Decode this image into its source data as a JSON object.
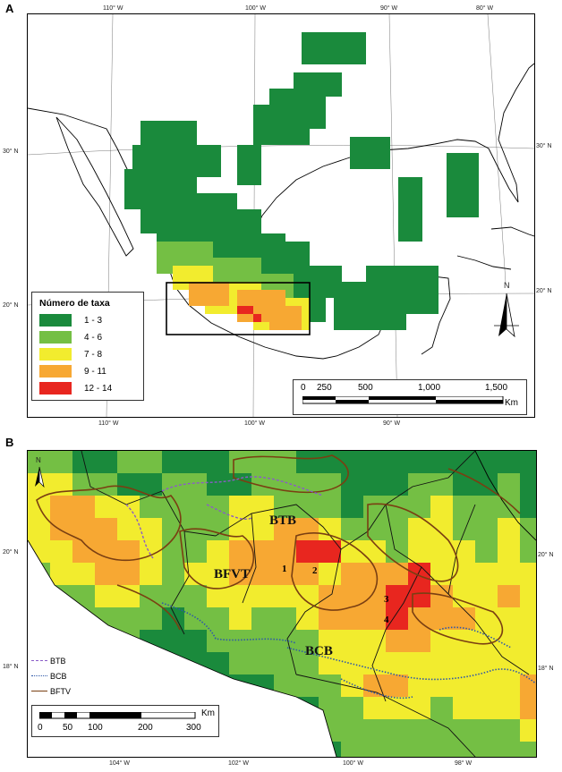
{
  "panel_a": {
    "letter": "A",
    "top_ticks": [
      "110° W",
      "100° W",
      "90° W",
      "80° W"
    ],
    "bottom_ticks": [
      "110° W",
      "100° W",
      "90° W"
    ],
    "left_ticks": [
      "30° N",
      "20° N"
    ],
    "right_ticks": [
      "30° N",
      "20° N"
    ],
    "legend": {
      "title": "Número de taxa",
      "items": [
        {
          "label": "1 - 3",
          "color": "#1a8a3c"
        },
        {
          "label": "4 - 6",
          "color": "#74bf44"
        },
        {
          "label": "7 - 8",
          "color": "#f2ec2e"
        },
        {
          "label": "9 - 11",
          "color": "#f7a833"
        },
        {
          "label": "12 - 14",
          "color": "#e8261f"
        }
      ]
    },
    "scale": {
      "labels": [
        "0",
        "250",
        "500",
        "1,000",
        "1,500"
      ],
      "unit": "Km"
    },
    "north": "N"
  },
  "panel_b": {
    "letter": "B",
    "left_ticks": [
      "20° N",
      "18° N"
    ],
    "right_ticks": [
      "20° N",
      "18° N"
    ],
    "bottom_ticks": [
      "104° W",
      "102° W",
      "100° W",
      "98° W"
    ],
    "veg_labels": {
      "btb": "BTB",
      "bfvt": "BFVT",
      "bcb": "BCB"
    },
    "area_numbers": [
      "1",
      "2",
      "3",
      "4"
    ],
    "line_legend": [
      {
        "label": "BTB",
        "color": "#8a5cc7",
        "style": "dashed"
      },
      {
        "label": "BCB",
        "color": "#2e58a8",
        "style": "dotted"
      },
      {
        "label": "BFTV",
        "color": "#7a3f12",
        "style": "solid"
      }
    ],
    "scale": {
      "labels": [
        "0",
        "50",
        "100",
        "200",
        "300"
      ],
      "unit": "Km"
    },
    "north": "N"
  }
}
